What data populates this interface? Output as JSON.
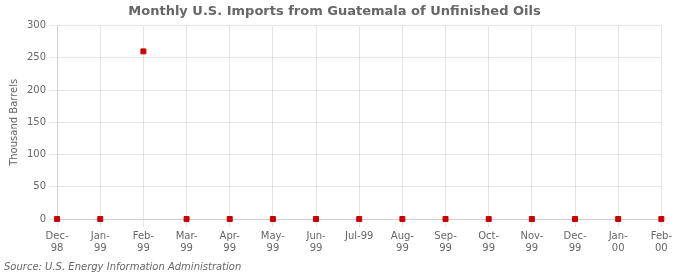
{
  "chart_data": {
    "type": "line",
    "title": "Monthly U.S. Imports from Guatemala of Unfinished Oils",
    "source": "Source: U.S. Energy Information Administration",
    "ylabel": "Thousand Barrels",
    "categories": [
      "Dec-\n98",
      "Jan-\n99",
      "Feb-\n99",
      "Mar-\n99",
      "Apr-\n99",
      "May-\n99",
      "Jun-\n99",
      "Jul-99",
      "Aug-\n99",
      "Sep-\n99",
      "Oct-\n99",
      "Nov-\n99",
      "Dec-\n99",
      "Jan-\n00",
      "Feb-\n00"
    ],
    "values": [
      0,
      0,
      260,
      0,
      0,
      0,
      0,
      0,
      0,
      0,
      0,
      0,
      0,
      0,
      0
    ],
    "color": "#cc0000",
    "marker": "square",
    "line_style": "none",
    "ylim": [
      0,
      300
    ],
    "yticks": [
      0,
      50,
      100,
      150,
      200,
      250,
      300
    ],
    "grid": true
  }
}
